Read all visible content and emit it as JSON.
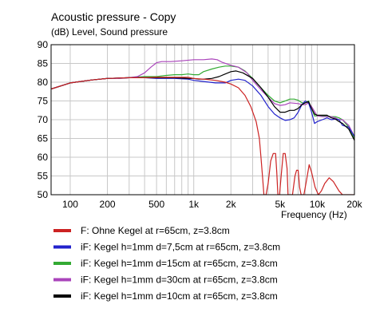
{
  "chart_data": {
    "type": "line",
    "title": "Acoustic pressure - Copy",
    "ylabel": "(dB)  Level, Sound pressure",
    "xlabel": "Frequency  (Hz)",
    "x_scale": "log",
    "xlim": [
      70,
      20000
    ],
    "ylim": [
      50,
      90
    ],
    "grid": true,
    "x_ticks": [
      {
        "value": 100,
        "label": "100"
      },
      {
        "value": 200,
        "label": "200"
      },
      {
        "value": 500,
        "label": "500"
      },
      {
        "value": 1000,
        "label": "1k"
      },
      {
        "value": 2000,
        "label": "2k"
      },
      {
        "value": 5000,
        "label": "5k"
      },
      {
        "value": 10000,
        "label": "10k"
      },
      {
        "value": 20000,
        "label": "20k"
      }
    ],
    "y_ticks": [
      50,
      55,
      60,
      65,
      70,
      75,
      80,
      85,
      90
    ],
    "legend_position": "bottom",
    "series": [
      {
        "name": "F: Ohne Kegel at r=65cm, z=3.8cm",
        "color": "#cc2222",
        "points": [
          [
            70,
            78.2
          ],
          [
            100,
            79.8
          ],
          [
            150,
            80.6
          ],
          [
            200,
            81
          ],
          [
            300,
            81.2
          ],
          [
            400,
            81.2
          ],
          [
            500,
            81.3
          ],
          [
            700,
            81.3
          ],
          [
            900,
            81.3
          ],
          [
            1000,
            81
          ],
          [
            1200,
            80.8
          ],
          [
            1500,
            80.5
          ],
          [
            1800,
            80
          ],
          [
            2000,
            79.5
          ],
          [
            2300,
            78.5
          ],
          [
            2600,
            76.5
          ],
          [
            2900,
            73.5
          ],
          [
            3200,
            69.5
          ],
          [
            3400,
            65
          ],
          [
            3500,
            60
          ],
          [
            3600,
            55
          ],
          [
            3700,
            50
          ],
          [
            3850,
            50
          ],
          [
            4000,
            53
          ],
          [
            4200,
            59
          ],
          [
            4400,
            61
          ],
          [
            4600,
            61
          ],
          [
            4700,
            56
          ],
          [
            4800,
            50
          ],
          [
            4950,
            50
          ],
          [
            5100,
            55
          ],
          [
            5300,
            61
          ],
          [
            5500,
            61
          ],
          [
            5700,
            57
          ],
          [
            5800,
            50
          ],
          [
            6300,
            50
          ],
          [
            6600,
            55
          ],
          [
            6800,
            56.5
          ],
          [
            7000,
            56.5
          ],
          [
            7200,
            52
          ],
          [
            7400,
            50
          ],
          [
            7800,
            50
          ],
          [
            8200,
            54
          ],
          [
            8600,
            58
          ],
          [
            9000,
            56
          ],
          [
            9600,
            52
          ],
          [
            10200,
            50
          ],
          [
            10800,
            51
          ],
          [
            11500,
            53
          ],
          [
            12500,
            54.5
          ],
          [
            13500,
            53.5
          ],
          [
            15000,
            51
          ],
          [
            16000,
            50
          ],
          [
            20000,
            50
          ]
        ]
      },
      {
        "name": "iF: Kegel h=1mm d=7,5cm at r=65cm, z=3.8cm",
        "color": "#2222cc",
        "points": [
          [
            70,
            78.2
          ],
          [
            100,
            79.8
          ],
          [
            150,
            80.6
          ],
          [
            200,
            81
          ],
          [
            300,
            81.2
          ],
          [
            400,
            81.2
          ],
          [
            500,
            81
          ],
          [
            700,
            81
          ],
          [
            900,
            80.8
          ],
          [
            1000,
            80.5
          ],
          [
            1200,
            80.2
          ],
          [
            1500,
            79.8
          ],
          [
            1800,
            79.8
          ],
          [
            2000,
            80.5
          ],
          [
            2300,
            80.8
          ],
          [
            2600,
            80.5
          ],
          [
            3000,
            79
          ],
          [
            3500,
            76.5
          ],
          [
            4000,
            73.5
          ],
          [
            4500,
            71.5
          ],
          [
            5000,
            70.5
          ],
          [
            5500,
            69.8
          ],
          [
            6000,
            70
          ],
          [
            6500,
            70.5
          ],
          [
            7000,
            72
          ],
          [
            7500,
            74
          ],
          [
            8000,
            75
          ],
          [
            8500,
            74.5
          ],
          [
            9000,
            72
          ],
          [
            9500,
            69
          ],
          [
            10000,
            69.5
          ],
          [
            11000,
            70
          ],
          [
            12000,
            70.5
          ],
          [
            13000,
            70
          ],
          [
            14000,
            70.2
          ],
          [
            15000,
            70
          ],
          [
            16000,
            68.5
          ],
          [
            18000,
            68
          ],
          [
            20000,
            65.5
          ]
        ]
      },
      {
        "name": "iF: Kegel h=1mm d=15cm at r=65cm, z=3.8cm",
        "color": "#33aa33",
        "points": [
          [
            70,
            78.2
          ],
          [
            100,
            79.8
          ],
          [
            150,
            80.6
          ],
          [
            200,
            81
          ],
          [
            300,
            81.2
          ],
          [
            400,
            81.5
          ],
          [
            500,
            81.5
          ],
          [
            600,
            81.8
          ],
          [
            700,
            82
          ],
          [
            800,
            82
          ],
          [
            900,
            82.2
          ],
          [
            1000,
            82
          ],
          [
            1100,
            82
          ],
          [
            1200,
            82.8
          ],
          [
            1400,
            83.5
          ],
          [
            1600,
            84
          ],
          [
            1800,
            84.3
          ],
          [
            2000,
            84.3
          ],
          [
            2300,
            84
          ],
          [
            2600,
            83
          ],
          [
            3000,
            81
          ],
          [
            3500,
            78.5
          ],
          [
            4000,
            76.5
          ],
          [
            4500,
            75
          ],
          [
            5000,
            74.5
          ],
          [
            5500,
            75
          ],
          [
            6000,
            75.5
          ],
          [
            6500,
            75.5
          ],
          [
            7000,
            75.2
          ],
          [
            7500,
            74.5
          ],
          [
            8000,
            74.5
          ],
          [
            8500,
            75
          ],
          [
            9000,
            73
          ],
          [
            9500,
            71
          ],
          [
            10000,
            71
          ],
          [
            11000,
            71
          ],
          [
            12000,
            71
          ],
          [
            13000,
            70.8
          ],
          [
            14000,
            70.8
          ],
          [
            15000,
            70.5
          ],
          [
            16000,
            70
          ],
          [
            18000,
            68
          ],
          [
            20000,
            65
          ]
        ]
      },
      {
        "name": "iF: Kegel h=1mm d=30cm at r=65cm, z=3.8cm",
        "color": "#aa44bb",
        "points": [
          [
            70,
            78.2
          ],
          [
            100,
            79.8
          ],
          [
            150,
            80.6
          ],
          [
            200,
            81
          ],
          [
            250,
            81
          ],
          [
            300,
            81.2
          ],
          [
            350,
            81.5
          ],
          [
            400,
            82.5
          ],
          [
            450,
            84
          ],
          [
            500,
            85.2
          ],
          [
            550,
            85.5
          ],
          [
            650,
            85.5
          ],
          [
            800,
            85.7
          ],
          [
            1000,
            86
          ],
          [
            1200,
            86
          ],
          [
            1400,
            86.2
          ],
          [
            1550,
            86
          ],
          [
            1700,
            85.3
          ],
          [
            2000,
            84.5
          ],
          [
            2300,
            84
          ],
          [
            2700,
            82.5
          ],
          [
            3000,
            80.5
          ],
          [
            3500,
            78
          ],
          [
            4000,
            76
          ],
          [
            4500,
            74.3
          ],
          [
            5000,
            73.8
          ],
          [
            5500,
            74
          ],
          [
            6000,
            74.5
          ],
          [
            7000,
            74.3
          ],
          [
            7500,
            74
          ],
          [
            8000,
            74
          ],
          [
            8500,
            74.5
          ],
          [
            9000,
            73.5
          ],
          [
            10000,
            71
          ],
          [
            11000,
            70.8
          ],
          [
            12000,
            70.8
          ],
          [
            13000,
            70.8
          ],
          [
            14000,
            70.5
          ],
          [
            15000,
            70
          ],
          [
            16000,
            70
          ],
          [
            18000,
            68.5
          ],
          [
            20000,
            65.5
          ]
        ]
      },
      {
        "name": "iF: Kegel h=1mm d=10cm at r=65cm, z=3.8cm",
        "color": "#000000",
        "points": [
          [
            70,
            78.2
          ],
          [
            100,
            79.8
          ],
          [
            150,
            80.6
          ],
          [
            200,
            81
          ],
          [
            300,
            81.2
          ],
          [
            400,
            81.2
          ],
          [
            500,
            81.2
          ],
          [
            600,
            81.2
          ],
          [
            700,
            81.2
          ],
          [
            900,
            81
          ],
          [
            1000,
            81
          ],
          [
            1100,
            80.8
          ],
          [
            1200,
            80.8
          ],
          [
            1400,
            81
          ],
          [
            1600,
            81.5
          ],
          [
            1800,
            82.2
          ],
          [
            2000,
            82.8
          ],
          [
            2200,
            83
          ],
          [
            2500,
            82.5
          ],
          [
            3000,
            81
          ],
          [
            3500,
            78.5
          ],
          [
            4000,
            76
          ],
          [
            4500,
            73.5
          ],
          [
            5000,
            72
          ],
          [
            5500,
            72
          ],
          [
            6000,
            72.5
          ],
          [
            6500,
            72.5
          ],
          [
            7000,
            73
          ],
          [
            7500,
            74
          ],
          [
            8000,
            74.5
          ],
          [
            8500,
            74.8
          ],
          [
            9000,
            73
          ],
          [
            9500,
            71.5
          ],
          [
            10000,
            71.2
          ],
          [
            11000,
            71.2
          ],
          [
            12000,
            71.2
          ],
          [
            13000,
            70.5
          ],
          [
            14000,
            70.2
          ],
          [
            15000,
            69.5
          ],
          [
            16000,
            69
          ],
          [
            18000,
            67.5
          ],
          [
            20000,
            64.5
          ]
        ]
      }
    ]
  }
}
